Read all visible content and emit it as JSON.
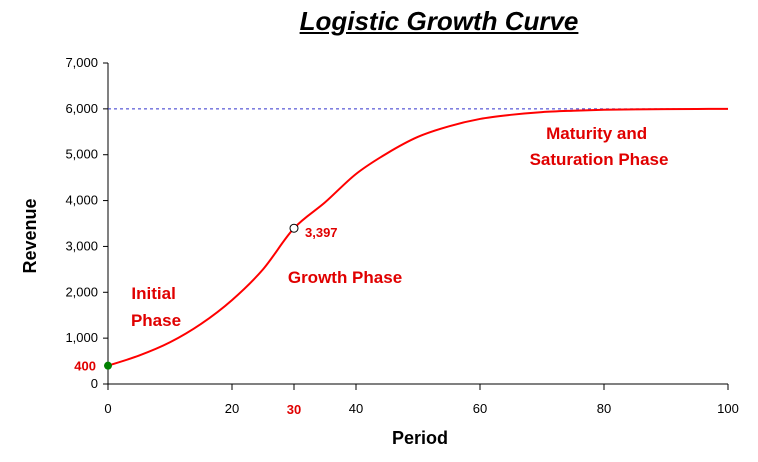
{
  "chart_data": {
    "type": "line",
    "title": "Logistic Growth Curve",
    "xlabel": "Period",
    "ylabel": "Revenue",
    "xlim": [
      0,
      100
    ],
    "ylim": [
      0,
      7000
    ],
    "x_ticks": [
      "0",
      "20",
      "40",
      "60",
      "80",
      "100"
    ],
    "y_ticks": [
      "0",
      "1,000",
      "2,000",
      "3,000",
      "4,000",
      "5,000",
      "6,000",
      "7,000"
    ],
    "series": [
      {
        "name": "Revenue",
        "color": "#ff0000",
        "x": [
          0,
          5,
          10,
          15,
          20,
          25,
          30,
          35,
          40,
          45,
          50,
          55,
          60,
          65,
          70,
          75,
          80,
          85,
          90,
          95,
          100
        ],
        "y": [
          400,
          620,
          910,
          1310,
          1830,
          2500,
          3397,
          3960,
          4580,
          5030,
          5390,
          5620,
          5780,
          5870,
          5930,
          5960,
          5980,
          5990,
          5995,
          5998,
          6000
        ]
      }
    ],
    "capacity_line": {
      "y": 6000,
      "color": "#3333cc",
      "style": "dashed"
    },
    "initial_marker": {
      "x": 0,
      "y": 400,
      "label": "400",
      "color": "#008000"
    },
    "highlight_point": {
      "x": 30,
      "y": 3397,
      "label": "3,397",
      "x_label": "30"
    },
    "annotations": [
      {
        "lines": [
          "Initial",
          "Phase"
        ]
      },
      {
        "lines": [
          "Growth Phase"
        ]
      },
      {
        "lines": [
          "Maturity and",
          "Saturation Phase"
        ]
      }
    ]
  }
}
